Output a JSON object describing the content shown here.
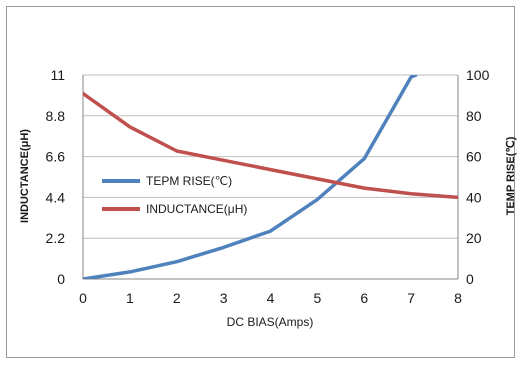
{
  "chart_data": {
    "type": "line",
    "xlabel": "DC BIAS(Amps)",
    "ylabel_left": "INDUCTANCE(μH)",
    "ylabel_right": "TEMP RISE(℃)",
    "x": [
      0,
      1,
      2,
      3,
      4,
      5,
      6,
      7,
      8
    ],
    "xlim": [
      0,
      8
    ],
    "ylim_left": [
      0,
      11
    ],
    "ylim_right": [
      0,
      100
    ],
    "yticks_left": [
      "0",
      "2.2",
      "4.4",
      "6.6",
      "8.8",
      "11"
    ],
    "yticks_right": [
      "0",
      "20",
      "40",
      "60",
      "80",
      "100"
    ],
    "xticks": [
      "0",
      "1",
      "2",
      "3",
      "4",
      "5",
      "6",
      "7",
      "8"
    ],
    "grid": true,
    "legend_position": "left-middle",
    "series": [
      {
        "name": "TEPM RISE(℃)",
        "axis": "right",
        "color": "#4f81bd",
        "x": [
          0,
          1,
          2,
          3,
          4,
          5,
          6,
          7,
          7.1
        ],
        "values": [
          0,
          3.5,
          8.5,
          15.5,
          23.5,
          39,
          59,
          99,
          100
        ]
      },
      {
        "name": "INDUCTANCE(μH)",
        "axis": "left",
        "color": "#c0504d",
        "x": [
          0,
          1,
          2,
          3,
          4,
          5,
          6,
          7,
          8
        ],
        "values": [
          10.0,
          8.2,
          6.9,
          6.4,
          5.9,
          5.4,
          4.9,
          4.6,
          4.4
        ]
      }
    ]
  }
}
